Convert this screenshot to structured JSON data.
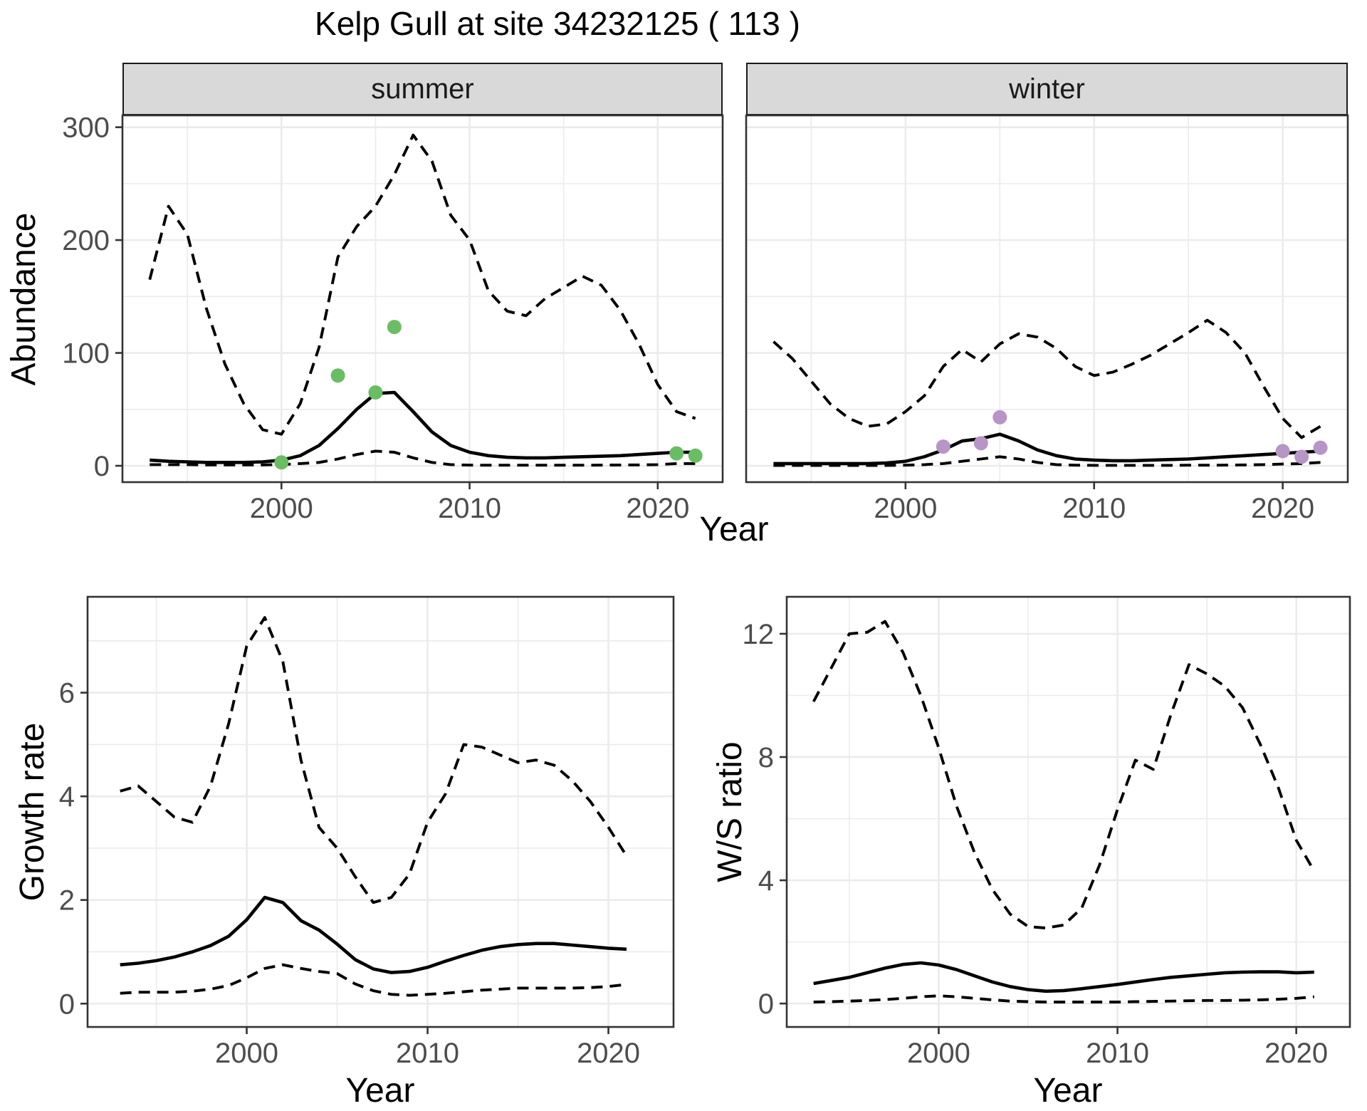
{
  "title": "Kelp Gull at site 34232125 ( 113 )",
  "labels": {
    "abundance": "Abundance",
    "year": "Year",
    "growth_rate": "Growth rate",
    "ws_ratio": "W/S ratio"
  },
  "facets": [
    {
      "label": "summer"
    },
    {
      "label": "winter"
    }
  ],
  "colors": {
    "summer_points": "#69bd62",
    "winter_points": "#b795c7",
    "line": "#000000",
    "grid": "#ebebeb",
    "panel_border": "#333333",
    "strip_bg": "#d9d9d9",
    "tick_text": "#4d4d4d"
  },
  "chart_data": [
    {
      "id": "abundance_summer",
      "type": "line",
      "facet": "summer",
      "ylabel": "Abundance",
      "xlabel": "Year",
      "x": [
        1993,
        1994,
        1995,
        1996,
        1997,
        1998,
        1999,
        2000,
        2001,
        2002,
        2003,
        2004,
        2005,
        2006,
        2007,
        2008,
        2009,
        2010,
        2011,
        2012,
        2013,
        2014,
        2015,
        2016,
        2017,
        2018,
        2019,
        2020,
        2021,
        2022
      ],
      "series": [
        {
          "name": "upper_ci",
          "style": "dashed",
          "values": [
            165,
            230,
            205,
            140,
            90,
            55,
            32,
            28,
            55,
            105,
            185,
            212,
            230,
            258,
            293,
            270,
            222,
            200,
            155,
            137,
            133,
            148,
            158,
            168,
            160,
            138,
            108,
            72,
            48,
            42
          ]
        },
        {
          "name": "mean",
          "style": "solid",
          "values": [
            5,
            4,
            3.5,
            3,
            3,
            3,
            3.5,
            5,
            9,
            18,
            33,
            50,
            64,
            65,
            48,
            30,
            18,
            12,
            9,
            7.5,
            7,
            7,
            7.5,
            8,
            8.5,
            9,
            10,
            11,
            12,
            12
          ]
        },
        {
          "name": "lower_ci",
          "style": "dashed",
          "values": [
            1,
            1,
            1,
            0.8,
            0.8,
            0.8,
            0.8,
            1,
            2,
            3,
            6,
            10,
            13,
            12,
            7,
            3,
            1,
            0.6,
            0.5,
            0.5,
            0.5,
            0.5,
            0.5,
            0.5,
            0.6,
            0.7,
            0.8,
            1,
            2,
            2
          ]
        }
      ],
      "points": {
        "color_key": "summer_points",
        "x": [
          2000,
          2003,
          2005,
          2006,
          2021,
          2022
        ],
        "y": [
          3,
          80,
          65,
          123,
          11,
          9
        ]
      },
      "xlim": [
        1991.55,
        2023.45
      ],
      "ylim": [
        -14.5,
        310.5
      ],
      "x_ticks": [
        2000,
        2010,
        2020
      ],
      "y_ticks": [
        0,
        100,
        200,
        300
      ],
      "x_minor": [
        1995,
        2005,
        2015
      ],
      "y_minor": [
        50,
        150,
        250
      ]
    },
    {
      "id": "abundance_winter",
      "type": "line",
      "facet": "winter",
      "ylabel": "Abundance",
      "xlabel": "Year",
      "x": [
        1993,
        1994,
        1995,
        1996,
        1997,
        1998,
        1999,
        2000,
        2001,
        2002,
        2003,
        2004,
        2005,
        2006,
        2007,
        2008,
        2009,
        2010,
        2011,
        2012,
        2013,
        2014,
        2015,
        2016,
        2017,
        2018,
        2019,
        2020,
        2021,
        2022
      ],
      "series": [
        {
          "name": "upper_ci",
          "style": "dashed",
          "values": [
            110,
            95,
            75,
            55,
            42,
            35,
            37,
            48,
            62,
            88,
            103,
            92,
            108,
            117,
            114,
            104,
            88,
            80,
            83,
            90,
            98,
            108,
            118,
            129,
            118,
            100,
            70,
            42,
            25,
            35
          ]
        },
        {
          "name": "mean",
          "style": "solid",
          "values": [
            2,
            2,
            2,
            2,
            2,
            2,
            2.5,
            4,
            8,
            14,
            22,
            24,
            28,
            22,
            14,
            9,
            6,
            5,
            4.5,
            4.5,
            5,
            5.5,
            6,
            7,
            8,
            9,
            10,
            11,
            12,
            13
          ]
        },
        {
          "name": "lower_ci",
          "style": "dashed",
          "values": [
            0.3,
            0.3,
            0.3,
            0.3,
            0.3,
            0.3,
            0.3,
            0.5,
            1,
            2,
            4,
            6,
            8,
            6,
            3,
            1,
            0.5,
            0.4,
            0.4,
            0.4,
            0.4,
            0.4,
            0.5,
            0.5,
            0.6,
            0.8,
            1,
            1.5,
            2,
            3
          ]
        }
      ],
      "points": {
        "color_key": "winter_points",
        "x": [
          2002,
          2004,
          2005,
          2020,
          2021,
          2022
        ],
        "y": [
          17,
          20,
          43,
          13,
          8,
          16
        ]
      },
      "xlim": [
        1991.55,
        2023.45
      ],
      "ylim": [
        -14.5,
        310.5
      ],
      "x_ticks": [
        2000,
        2010,
        2020
      ],
      "y_ticks": [
        0,
        100,
        200,
        300
      ],
      "x_minor": [
        1995,
        2005,
        2015
      ],
      "y_minor": [
        50,
        150,
        250
      ]
    },
    {
      "id": "growth_rate",
      "type": "line",
      "ylabel": "Growth rate",
      "xlabel": "Year",
      "x": [
        1993,
        1994,
        1995,
        1996,
        1997,
        1998,
        1999,
        2000,
        2001,
        2002,
        2003,
        2004,
        2005,
        2006,
        2007,
        2008,
        2009,
        2010,
        2011,
        2012,
        2013,
        2014,
        2015,
        2016,
        2017,
        2018,
        2019,
        2020,
        2021
      ],
      "series": [
        {
          "name": "upper_ci",
          "style": "dashed",
          "values": [
            4.1,
            4.2,
            3.9,
            3.6,
            3.5,
            4.2,
            5.4,
            6.9,
            7.45,
            6.6,
            4.7,
            3.4,
            3.0,
            2.45,
            1.95,
            2.05,
            2.5,
            3.5,
            4.05,
            5.0,
            4.95,
            4.8,
            4.65,
            4.7,
            4.6,
            4.3,
            3.9,
            3.4,
            2.85
          ]
        },
        {
          "name": "mean",
          "style": "solid",
          "values": [
            0.75,
            0.78,
            0.83,
            0.9,
            1.0,
            1.12,
            1.3,
            1.62,
            2.05,
            1.95,
            1.6,
            1.42,
            1.15,
            0.85,
            0.67,
            0.6,
            0.62,
            0.7,
            0.82,
            0.93,
            1.03,
            1.1,
            1.14,
            1.16,
            1.16,
            1.13,
            1.1,
            1.07,
            1.05
          ]
        },
        {
          "name": "lower_ci",
          "style": "dashed",
          "values": [
            0.2,
            0.22,
            0.22,
            0.22,
            0.24,
            0.28,
            0.35,
            0.5,
            0.68,
            0.75,
            0.68,
            0.62,
            0.58,
            0.38,
            0.25,
            0.18,
            0.16,
            0.18,
            0.2,
            0.23,
            0.26,
            0.28,
            0.3,
            0.3,
            0.3,
            0.3,
            0.31,
            0.33,
            0.37
          ]
        }
      ],
      "xlim": [
        1991.2,
        2023.6
      ],
      "ylim": [
        -0.45,
        7.85
      ],
      "x_ticks": [
        2000,
        2010,
        2020
      ],
      "y_ticks": [
        0,
        2,
        4,
        6
      ],
      "x_minor": [
        1995,
        2005,
        2015
      ],
      "y_minor": [
        1,
        3,
        5,
        7
      ]
    },
    {
      "id": "ws_ratio",
      "type": "line",
      "ylabel": "W/S ratio",
      "xlabel": "Year",
      "x": [
        1993,
        1994,
        1995,
        1996,
        1997,
        1998,
        1999,
        2000,
        2001,
        2002,
        2003,
        2004,
        2005,
        2006,
        2007,
        2008,
        2009,
        2010,
        2011,
        2012,
        2013,
        2014,
        2015,
        2016,
        2017,
        2018,
        2019,
        2020,
        2021
      ],
      "series": [
        {
          "name": "upper_ci",
          "style": "dashed",
          "values": [
            9.8,
            10.9,
            12.0,
            12.05,
            12.4,
            11.4,
            10.0,
            8.3,
            6.4,
            4.9,
            3.7,
            2.9,
            2.5,
            2.45,
            2.55,
            3.1,
            4.5,
            6.3,
            7.9,
            7.6,
            9.4,
            11.0,
            10.7,
            10.3,
            9.6,
            8.4,
            7.0,
            5.3,
            4.3
          ]
        },
        {
          "name": "mean",
          "style": "solid",
          "values": [
            0.65,
            0.75,
            0.85,
            1.0,
            1.15,
            1.27,
            1.32,
            1.25,
            1.1,
            0.9,
            0.7,
            0.55,
            0.45,
            0.4,
            0.42,
            0.48,
            0.55,
            0.62,
            0.7,
            0.78,
            0.85,
            0.9,
            0.95,
            1.0,
            1.02,
            1.03,
            1.03,
            1.0,
            1.02
          ]
        },
        {
          "name": "lower_ci",
          "style": "dashed",
          "values": [
            0.05,
            0.06,
            0.08,
            0.1,
            0.13,
            0.17,
            0.22,
            0.25,
            0.22,
            0.17,
            0.12,
            0.08,
            0.06,
            0.05,
            0.05,
            0.05,
            0.05,
            0.05,
            0.06,
            0.07,
            0.08,
            0.09,
            0.1,
            0.1,
            0.11,
            0.12,
            0.14,
            0.17,
            0.22
          ]
        }
      ],
      "xlim": [
        1991.5,
        2023.0
      ],
      "ylim": [
        -0.76,
        13.2
      ],
      "x_ticks": [
        2000,
        2010,
        2020
      ],
      "y_ticks": [
        0,
        4,
        8,
        12
      ],
      "x_minor": [
        1995,
        2005,
        2015
      ],
      "y_minor": [
        2,
        6,
        10
      ]
    }
  ]
}
